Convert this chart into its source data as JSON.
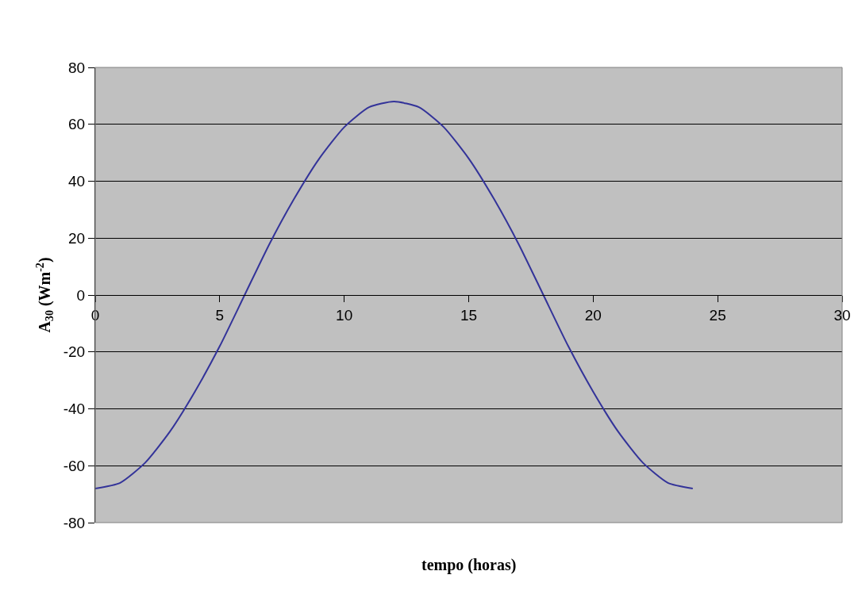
{
  "chart_data": {
    "type": "line",
    "xlabel": "tempo (horas)",
    "ylabel": "A$_{30}$ (Wm$^{-2}$)",
    "x": [
      0,
      1,
      2,
      3,
      4,
      5,
      6,
      7,
      8,
      9,
      10,
      11,
      12,
      13,
      14,
      15,
      16,
      17,
      18,
      19,
      20,
      21,
      22,
      23,
      24
    ],
    "series": [
      {
        "color": "#333399",
        "values": [
          -68,
          -66,
          -59,
          -48,
          -34,
          -18,
          0,
          18,
          34,
          48,
          59,
          66,
          68,
          66,
          59,
          48,
          34,
          18,
          0,
          -18,
          -34,
          -48,
          -59,
          -66,
          -68
        ]
      }
    ],
    "xlim": [
      0,
      30
    ],
    "xticks": [
      0,
      5,
      10,
      15,
      20,
      25,
      30
    ],
    "ylim": [
      -80,
      80
    ],
    "yticks": [
      -80,
      -60,
      -40,
      -20,
      0,
      20,
      40,
      60,
      80
    ],
    "grid": "y",
    "marker": "none",
    "line_style": "solid"
  }
}
